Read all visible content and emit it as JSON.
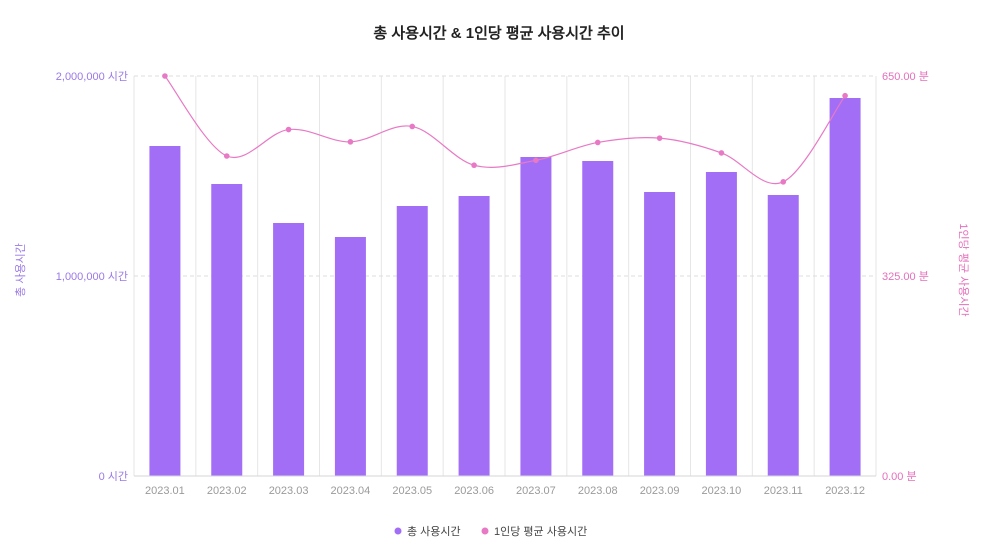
{
  "chart_data": {
    "type": "bar",
    "title": "총 사용시간 & 1인당 평균 사용시간 추이",
    "categories": [
      "2023.01",
      "2023.02",
      "2023.03",
      "2023.04",
      "2023.05",
      "2023.06",
      "2023.07",
      "2023.08",
      "2023.09",
      "2023.10",
      "2023.11",
      "2023.12"
    ],
    "series": [
      {
        "name": "총 사용시간",
        "type": "bar",
        "axis": "left",
        "color": "#a36ef6",
        "values": [
          1650000,
          1460000,
          1265000,
          1195000,
          1350000,
          1400000,
          1595000,
          1575000,
          1420000,
          1520000,
          1405000,
          1890000
        ]
      },
      {
        "name": "1인당 평균 사용시간",
        "type": "line",
        "axis": "right",
        "color": "#e879c5",
        "values": [
          650,
          520,
          563,
          543,
          568,
          505,
          513,
          542,
          549,
          525,
          478,
          618
        ]
      }
    ],
    "ylabel": "총 사용시간",
    "y2label": "1인당 평균 사용시간",
    "ylim": [
      0,
      2000000
    ],
    "y2lim": [
      0,
      650
    ],
    "y_ticks": [
      "0 시간",
      "1,000,000 시간",
      "2,000,000 시간"
    ],
    "y2_ticks": [
      "0.00 분",
      "325.00 분",
      "650.00 분"
    ],
    "grid": true,
    "legend_position": "bottom-center"
  }
}
